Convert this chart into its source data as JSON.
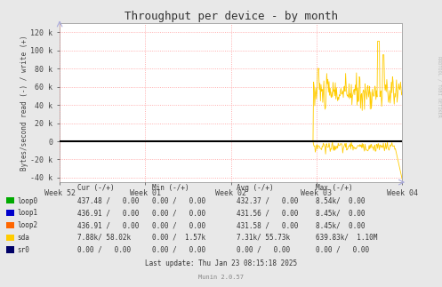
{
  "title": "Throughput per device - by month",
  "ylabel": "Bytes/second read (-) / write (+)",
  "background_color": "#e8e8e8",
  "plot_bg_color": "#ffffff",
  "grid_color": "#ff9999",
  "axis_color": "#aaaaaa",
  "ylim": [
    -45000,
    130000
  ],
  "yticks": [
    -40000,
    -20000,
    0,
    20000,
    40000,
    60000,
    80000,
    100000,
    120000
  ],
  "ytick_labels": [
    "-40 k",
    "-20 k",
    "0",
    "20 k",
    "40 k",
    "60 k",
    "80 k",
    "100 k",
    "120 k"
  ],
  "xtick_positions": [
    0.0,
    0.25,
    0.5,
    0.75,
    1.0
  ],
  "xtick_labels": [
    "Week 52",
    "Week 01",
    "Week 02",
    "Week 03",
    "Week 04"
  ],
  "line_color_sda": "#ffcc00",
  "line_color_loop0": "#00aa00",
  "line_color_loop1": "#0000cc",
  "line_color_loop2": "#ff6600",
  "line_color_sr0": "#000066",
  "zero_line_color": "#000000",
  "rrdtool_text": "RRDTOOL / TOBI OETIKER",
  "table_headers": [
    "Cur (-/+)",
    "Min (-/+)",
    "Avg (-/+)",
    "Max (-/+)"
  ],
  "table_data": [
    [
      "loop0",
      "#00aa00",
      "437.48 /   0.00",
      "0.00 /   0.00",
      "432.37 /   0.00",
      "8.54k/  0.00"
    ],
    [
      "loop1",
      "#0000cc",
      "436.91 /   0.00",
      "0.00 /   0.00",
      "431.56 /   0.00",
      "8.45k/  0.00"
    ],
    [
      "loop2",
      "#ff6600",
      "436.91 /   0.00",
      "0.00 /   0.00",
      "431.58 /   0.00",
      "8.45k/  0.00"
    ],
    [
      "sda",
      "#ffcc00",
      "7.88k/ 58.02k",
      "0.00 /  1.57k",
      "7.31k/ 55.73k",
      "639.83k/  1.10M"
    ],
    [
      "sr0",
      "#000066",
      "0.00 /   0.00",
      "0.00 /   0.00",
      "0.00 /   0.00",
      "0.00 /   0.00"
    ]
  ],
  "footer_text": "Last update: Thu Jan 23 08:15:18 2025",
  "munin_text": "Munin 2.0.57"
}
